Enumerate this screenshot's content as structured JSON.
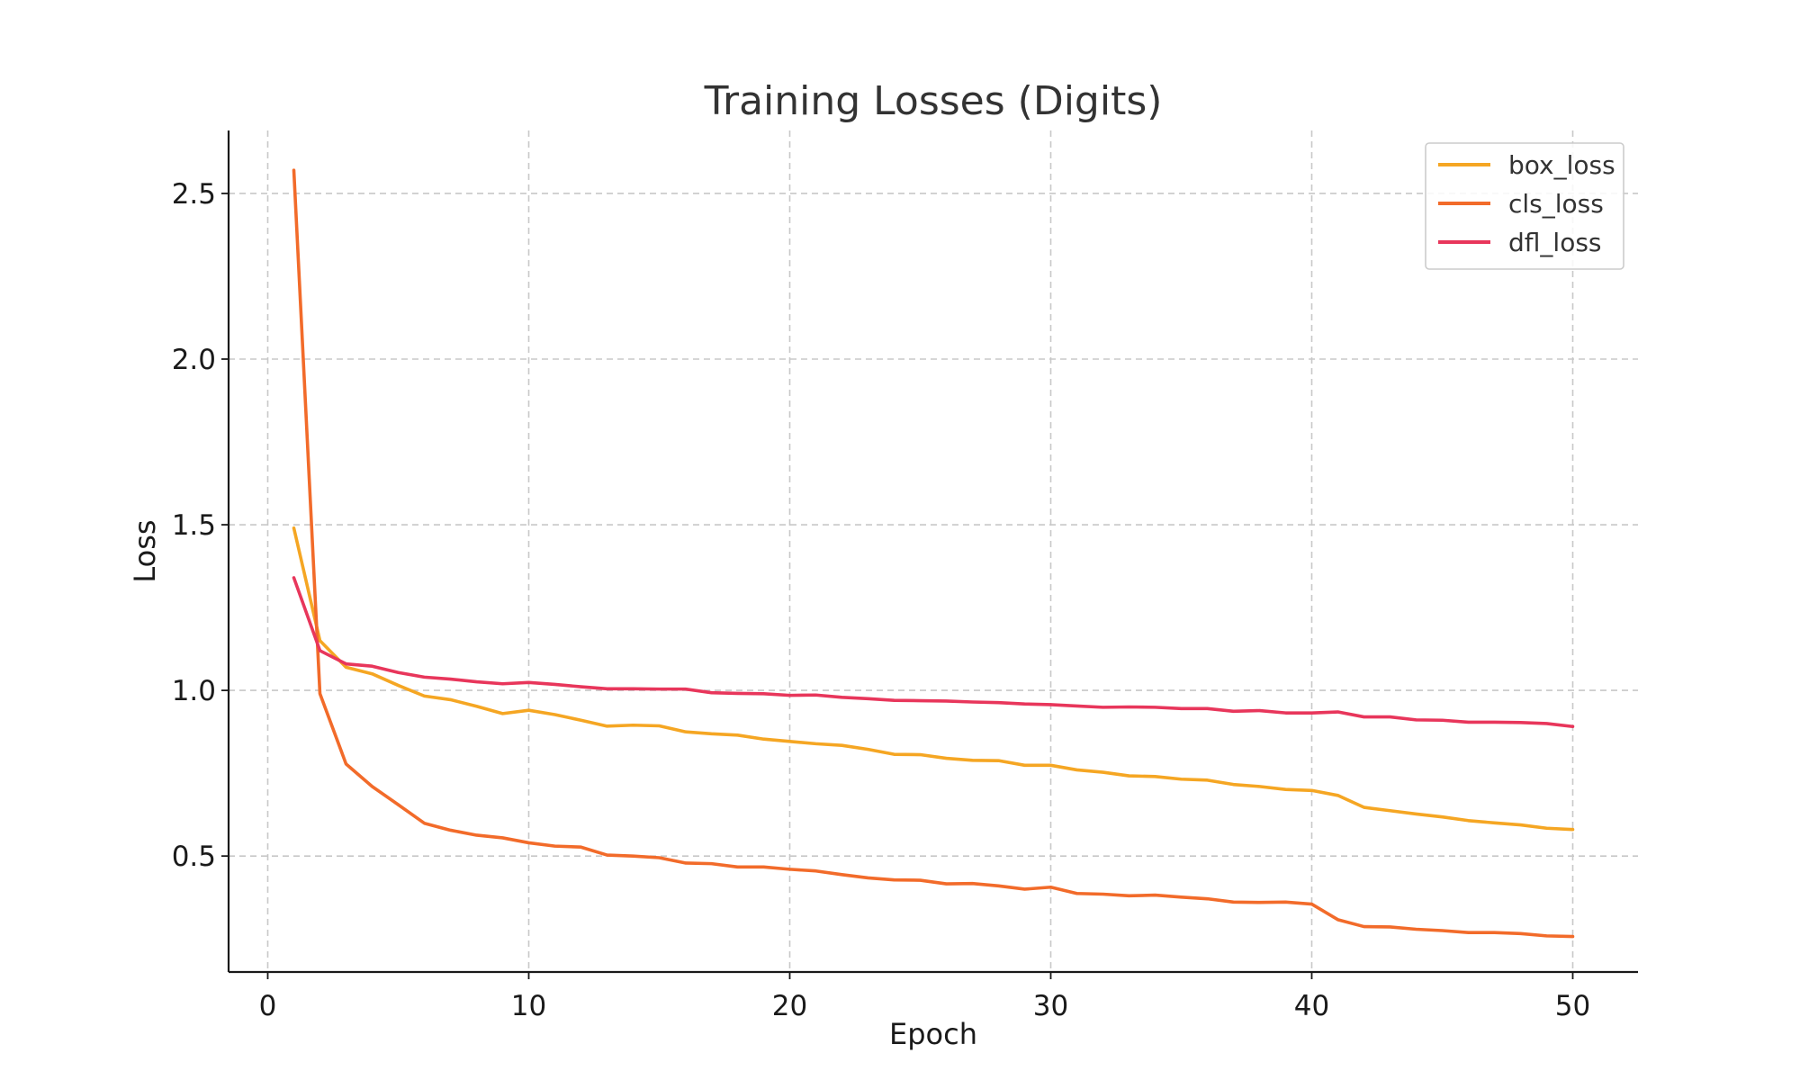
{
  "chart_data": {
    "type": "line",
    "title": "Training Losses (Digits)",
    "xlabel": "Epoch",
    "ylabel": "Loss",
    "xlim": [
      -1.5,
      52.5
    ],
    "ylim": [
      0.15,
      2.69
    ],
    "xticks": [
      0,
      10,
      20,
      30,
      40,
      50
    ],
    "yticks": [
      0.5,
      1.0,
      1.5,
      2.0,
      2.5
    ],
    "xtick_labels": [
      "0",
      "10",
      "20",
      "30",
      "40",
      "50"
    ],
    "ytick_labels": [
      "0.5",
      "1.0",
      "1.5",
      "2.0",
      "2.5"
    ],
    "grid": true,
    "legend_position": "top-right",
    "x": [
      1,
      2,
      3,
      4,
      5,
      6,
      7,
      8,
      9,
      10,
      11,
      12,
      13,
      14,
      15,
      16,
      17,
      18,
      19,
      20,
      21,
      22,
      23,
      24,
      25,
      26,
      27,
      28,
      29,
      30,
      31,
      32,
      33,
      34,
      35,
      36,
      37,
      38,
      39,
      40,
      41,
      42,
      43,
      44,
      45,
      46,
      47,
      48,
      49,
      50
    ],
    "series": [
      {
        "name": "box_loss",
        "color": "#f5a623",
        "values": [
          1.49,
          1.15,
          1.07,
          1.05,
          1.015,
          0.983,
          0.972,
          0.952,
          0.93,
          0.94,
          0.927,
          0.91,
          0.892,
          0.895,
          0.893,
          0.875,
          0.869,
          0.865,
          0.853,
          0.846,
          0.839,
          0.834,
          0.822,
          0.807,
          0.806,
          0.795,
          0.789,
          0.788,
          0.774,
          0.774,
          0.76,
          0.753,
          0.742,
          0.74,
          0.732,
          0.729,
          0.716,
          0.71,
          0.701,
          0.698,
          0.683,
          0.647,
          0.637,
          0.627,
          0.618,
          0.607,
          0.6,
          0.594,
          0.584,
          0.58
        ]
      },
      {
        "name": "cls_loss",
        "color": "#f26b2a",
        "values": [
          2.57,
          0.99,
          0.778,
          0.71,
          0.655,
          0.599,
          0.578,
          0.563,
          0.555,
          0.54,
          0.53,
          0.527,
          0.503,
          0.5,
          0.495,
          0.479,
          0.477,
          0.467,
          0.467,
          0.46,
          0.455,
          0.444,
          0.434,
          0.428,
          0.427,
          0.416,
          0.417,
          0.41,
          0.4,
          0.406,
          0.387,
          0.385,
          0.38,
          0.382,
          0.376,
          0.371,
          0.361,
          0.36,
          0.361,
          0.355,
          0.308,
          0.287,
          0.286,
          0.279,
          0.275,
          0.269,
          0.269,
          0.266,
          0.259,
          0.257
        ]
      },
      {
        "name": "dfl_loss",
        "color": "#e8365b",
        "values": [
          1.34,
          1.12,
          1.08,
          1.073,
          1.054,
          1.04,
          1.034,
          1.026,
          1.02,
          1.024,
          1.018,
          1.011,
          1.005,
          1.005,
          1.004,
          1.004,
          0.993,
          0.991,
          0.99,
          0.985,
          0.986,
          0.979,
          0.975,
          0.97,
          0.969,
          0.968,
          0.965,
          0.963,
          0.959,
          0.957,
          0.953,
          0.949,
          0.95,
          0.949,
          0.945,
          0.945,
          0.937,
          0.939,
          0.932,
          0.932,
          0.935,
          0.92,
          0.92,
          0.911,
          0.91,
          0.904,
          0.904,
          0.903,
          0.9,
          0.891
        ]
      }
    ]
  }
}
